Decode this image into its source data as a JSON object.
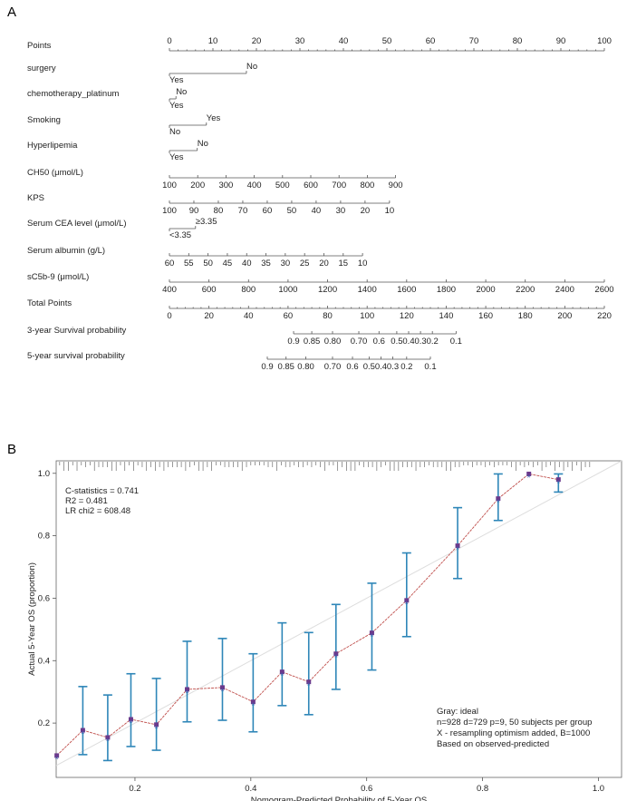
{
  "panels": {
    "a": "A",
    "b": "B"
  },
  "chart_data": [
    {
      "type": "nomogram",
      "points_axis": {
        "label": "Points",
        "ticks": [
          0,
          10,
          20,
          30,
          40,
          50,
          60,
          70,
          80,
          90,
          100
        ]
      },
      "variables": [
        {
          "label": "surgery",
          "kind": "binary",
          "levels": [
            {
              "label": "Yes",
              "points": 0
            },
            {
              "label": "No",
              "points": 17.7
            }
          ]
        },
        {
          "label": "chemotherapy_platinum",
          "kind": "binary",
          "levels": [
            {
              "label": "Yes",
              "points": 0
            },
            {
              "label": "No",
              "points": 1.5
            }
          ]
        },
        {
          "label": "Smoking",
          "kind": "binary",
          "levels": [
            {
              "label": "No",
              "points": 0
            },
            {
              "label": "Yes",
              "points": 8.5
            }
          ]
        },
        {
          "label": "Hyperlipemia",
          "kind": "binary",
          "levels": [
            {
              "label": "Yes",
              "points": 0
            },
            {
              "label": "No",
              "points": 6.4
            }
          ]
        },
        {
          "label": "CH50 (μmol/L)",
          "kind": "continuous",
          "ticks": [
            "100",
            "200",
            "300",
            "400",
            "500",
            "600",
            "700",
            "800",
            "900"
          ],
          "points_range": [
            0,
            52
          ]
        },
        {
          "label": "KPS",
          "kind": "continuous",
          "ticks": [
            "100",
            "90",
            "80",
            "70",
            "60",
            "50",
            "40",
            "30",
            "20",
            "10"
          ],
          "points_range": [
            0,
            50.6
          ]
        },
        {
          "label": "Serum CEA level (μmol/L)",
          "kind": "binary",
          "levels": [
            {
              "label": "<3.35",
              "points": 0
            },
            {
              "label": "≥3.35",
              "points": 6
            }
          ]
        },
        {
          "label": "Serum albumin (g/L)",
          "kind": "continuous",
          "ticks": [
            "60",
            "55",
            "50",
            "45",
            "40",
            "35",
            "30",
            "25",
            "20",
            "15",
            "10"
          ],
          "points_range": [
            0,
            44.4
          ]
        },
        {
          "label": "sC5b-9 (μmol/L)",
          "kind": "continuous",
          "ticks": [
            "400",
            "600",
            "800",
            "1000",
            "1200",
            "1400",
            "1600",
            "1800",
            "2000",
            "2200",
            "2400",
            "2600"
          ],
          "points_range": [
            0,
            100
          ]
        }
      ],
      "total_points_axis": {
        "label": "Total Points",
        "ticks": [
          0,
          20,
          40,
          60,
          80,
          100,
          120,
          140,
          160,
          180,
          200,
          220
        ]
      },
      "probability_axes": [
        {
          "label": "3-year Survival probability",
          "ticks": [
            {
              "label": "0.9",
              "total_points": 62.8
            },
            {
              "label": "0.85",
              "total_points": 72
            },
            {
              "label": "0.80",
              "total_points": 82.5
            },
            {
              "label": "0.70",
              "total_points": 95.8
            },
            {
              "label": "0.6",
              "total_points": 106
            },
            {
              "label": "0.5",
              "total_points": 115
            },
            {
              "label": "0.4",
              "total_points": 121
            },
            {
              "label": "0.3",
              "total_points": 127
            },
            {
              "label": "0.2",
              "total_points": 133
            },
            {
              "label": "0.1",
              "total_points": 145
            }
          ]
        },
        {
          "label": "5-year survival probability",
          "ticks": [
            {
              "label": "0.9",
              "total_points": 49.5
            },
            {
              "label": "0.85",
              "total_points": 59
            },
            {
              "label": "0.80",
              "total_points": 69
            },
            {
              "label": "0.70",
              "total_points": 82.5
            },
            {
              "label": "0.6",
              "total_points": 92.6
            },
            {
              "label": "0.5",
              "total_points": 101
            },
            {
              "label": "0.4",
              "total_points": 107
            },
            {
              "label": "0.3",
              "total_points": 113
            },
            {
              "label": "0.2",
              "total_points": 120
            },
            {
              "label": "0.1",
              "total_points": 132
            }
          ]
        }
      ]
    },
    {
      "type": "line",
      "title": "",
      "xlabel": "Nomogram-Predicted Probability of 5-Year OS",
      "ylabel": "Actual 5-Year OS (proportion)",
      "xlim": [
        0.064,
        1.04
      ],
      "ylim": [
        0.026,
        1.04
      ],
      "xticks": [
        "0.2",
        "0.4",
        "0.6",
        "0.8",
        "1.0"
      ],
      "yticks": [
        "0.2",
        "0.4",
        "0.6",
        "0.8",
        "1.0"
      ],
      "stats": [
        "C-statistics = 0.741",
        "R2 = 0.481",
        "LR chi2 = 608.48"
      ],
      "legend": [
        "Gray: ideal",
        "n=928 d=729 p=9, 50 subjects per group",
        "X - resampling optimism added, B=1000",
        "Based on observed-predicted"
      ],
      "colors": {
        "line": "#c0504d",
        "errorbar": "#2e86b8",
        "point": "#6b3a8c",
        "ideal": "#dddddd"
      },
      "series": [
        {
          "name": "observed",
          "x": [
            0.065,
            0.11,
            0.153,
            0.193,
            0.237,
            0.29,
            0.351,
            0.404,
            0.454,
            0.5,
            0.547,
            0.609,
            0.669,
            0.757,
            0.827,
            0.88,
            0.931
          ],
          "y": [
            0.096,
            0.177,
            0.154,
            0.212,
            0.195,
            0.308,
            0.314,
            0.268,
            0.364,
            0.332,
            0.422,
            0.489,
            0.593,
            0.768,
            0.919,
            0.998,
            0.98
          ],
          "lower": [
            null,
            0.099,
            0.08,
            0.125,
            0.113,
            0.204,
            0.209,
            0.172,
            0.256,
            0.227,
            0.308,
            0.37,
            0.477,
            0.663,
            0.849,
            null,
            0.94
          ],
          "upper": [
            null,
            0.317,
            0.29,
            0.358,
            0.343,
            0.462,
            0.471,
            0.422,
            0.521,
            0.49,
            0.58,
            0.648,
            0.745,
            0.89,
            0.998,
            null,
            0.998
          ]
        },
        {
          "name": "ideal",
          "x": [
            0,
            1.04
          ],
          "y": [
            0,
            1.04
          ]
        }
      ]
    }
  ]
}
